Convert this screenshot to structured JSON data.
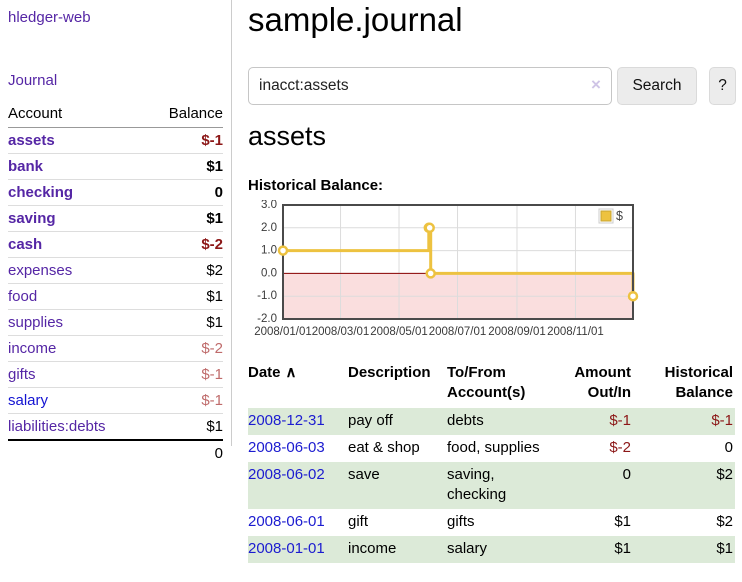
{
  "colors": {
    "link_purple": "#5526a5",
    "link_blue": "#1414d2",
    "negative_strong": "#8c1717",
    "negative_muted": "#bf6b6b",
    "row_highlight_green": "#dcead8",
    "chart_line_gold": "#edc240",
    "chart_negative_fill": "#fadede",
    "chart_zero_line": "#8b0000"
  },
  "sidebar": {
    "app_title": "hledger-web",
    "nav": {
      "journal_label": "Journal"
    },
    "accounts_table": {
      "headers": {
        "account": "Account",
        "balance": "Balance"
      },
      "rows": [
        {
          "name": "assets",
          "balance": "$-1",
          "level": 1,
          "bold": true,
          "balance_style": "neg-strong",
          "link_color": "purple"
        },
        {
          "name": "bank",
          "balance": "$1",
          "level": 2,
          "bold": true,
          "balance_style": "normal",
          "link_color": "purple"
        },
        {
          "name": "checking",
          "balance": "0",
          "level": 3,
          "bold": true,
          "balance_style": "normal",
          "link_color": "purple"
        },
        {
          "name": "saving",
          "balance": "$1",
          "level": 3,
          "bold": true,
          "balance_style": "normal",
          "link_color": "purple"
        },
        {
          "name": "cash",
          "balance": "$-2",
          "level": 2,
          "bold": true,
          "balance_style": "neg-strong",
          "link_color": "purple"
        },
        {
          "name": "expenses",
          "balance": "$2",
          "level": 1,
          "bold": false,
          "balance_style": "normal",
          "link_color": "purple"
        },
        {
          "name": "food",
          "balance": "$1",
          "level": 2,
          "bold": false,
          "balance_style": "normal",
          "link_color": "purple"
        },
        {
          "name": "supplies",
          "balance": "$1",
          "level": 2,
          "bold": false,
          "balance_style": "normal",
          "link_color": "purple"
        },
        {
          "name": "income",
          "balance": "$-2",
          "level": 1,
          "bold": false,
          "balance_style": "neg-muted",
          "link_color": "purple"
        },
        {
          "name": "gifts",
          "balance": "$-1",
          "level": 2,
          "bold": false,
          "balance_style": "neg-muted",
          "link_color": "purple"
        },
        {
          "name": "salary",
          "balance": "$-1",
          "level": 2,
          "bold": false,
          "balance_style": "neg-muted",
          "link_color": "blue"
        },
        {
          "name": "liabilities:debts",
          "balance": "$1",
          "level": 1,
          "bold": false,
          "balance_style": "normal",
          "link_color": "purple"
        }
      ],
      "total": "0"
    }
  },
  "main": {
    "page_title": "sample.journal",
    "search": {
      "value": "inacct:assets",
      "clear_icon": "×",
      "search_button": "Search",
      "help_button": "?"
    },
    "account_heading": "assets",
    "chart_label": "Historical Balance:"
  },
  "chart_data": {
    "type": "line",
    "step": true,
    "title": "Historical Balance",
    "series": [
      {
        "name": "$",
        "color": "#edc240",
        "points": [
          [
            "2008-01-01",
            1
          ],
          [
            "2008-06-01",
            2
          ],
          [
            "2008-06-02",
            2
          ],
          [
            "2008-06-03",
            0
          ],
          [
            "2008-12-31",
            -1
          ]
        ]
      }
    ],
    "xlim": [
      "2008-01-01",
      "2008-12-31"
    ],
    "ylim": [
      -2,
      3
    ],
    "x_ticks": [
      "2008/01/01",
      "2008/03/01",
      "2008/05/01",
      "2008/07/01",
      "2008/09/01",
      "2008/11/01"
    ],
    "y_ticks": [
      3.0,
      2.0,
      1.0,
      0.0,
      -1.0,
      -2.0
    ],
    "grid": true,
    "legend": {
      "label": "$",
      "position": "top-right"
    },
    "negative_region_fill": "#fadede",
    "zero_line_color": "#8b0000"
  },
  "transactions": {
    "headers": {
      "date": "Date",
      "sort_icon": "∧",
      "description": "Description",
      "tofrom": "To/From Account(s)",
      "amount": "Amount Out/In",
      "balance": "Historical Balance"
    },
    "rows": [
      {
        "date": "2008-12-31",
        "description": "pay off",
        "accounts": "debts",
        "amount": "$-1",
        "balance": "$-1",
        "highlight": true
      },
      {
        "date": "2008-06-03",
        "description": "eat & shop",
        "accounts": "food, supplies",
        "amount": "$-2",
        "balance": "0",
        "highlight": false
      },
      {
        "date": "2008-06-02",
        "description": "save",
        "accounts": "saving, checking",
        "amount": "0",
        "balance": "$2",
        "highlight": true
      },
      {
        "date": "2008-06-01",
        "description": "gift",
        "accounts": "gifts",
        "amount": "$1",
        "balance": "$2",
        "highlight": false
      },
      {
        "date": "2008-01-01",
        "description": "income",
        "accounts": "salary",
        "amount": "$1",
        "balance": "$1",
        "highlight": true
      }
    ]
  }
}
